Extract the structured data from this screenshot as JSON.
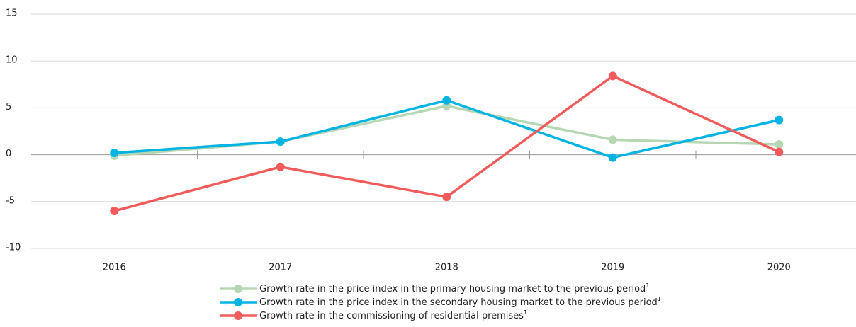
{
  "chart_data": {
    "type": "line",
    "categories": [
      "2016",
      "2017",
      "2018",
      "2019",
      "2020"
    ],
    "series": [
      {
        "name": "Growth rate in the price index in the primary housing market to the previous period",
        "color": "#b7d7b4",
        "values": [
          -0.1,
          1.4,
          5.2,
          1.6,
          1.1
        ]
      },
      {
        "name": "Growth rate in the price index in the secondary housing market to the previous period",
        "color": "#00b3e3",
        "values": [
          0.2,
          1.4,
          5.8,
          -0.3,
          3.7
        ]
      },
      {
        "name": "Growth rate in the commissioning of residential premises",
        "color": "#f25b5b",
        "values": [
          -6.0,
          -1.3,
          -4.5,
          8.4,
          0.3
        ]
      }
    ],
    "legend_footnote": "1",
    "ylim": [
      -10,
      15
    ],
    "yticks": [
      -10,
      -5,
      0,
      5,
      10,
      15
    ],
    "grid": true,
    "legend": "bottom"
  }
}
